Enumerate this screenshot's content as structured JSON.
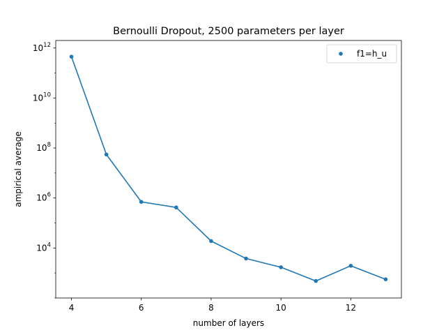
{
  "chart_data": {
    "type": "line",
    "title": "Bernoulli Dropout, 2500 parameters per layer",
    "xlabel": "number of layers",
    "ylabel": "ampirical  average",
    "x_scale": "linear",
    "y_scale": "log",
    "xlim": [
      3.55,
      13.45
    ],
    "ylim": [
      100,
      2000000000000
    ],
    "x_ticks": [
      4,
      6,
      8,
      10,
      12
    ],
    "y_ticks": [
      {
        "value": 10000,
        "base": "10",
        "exp": "4"
      },
      {
        "value": 1000000,
        "base": "10",
        "exp": "6"
      },
      {
        "value": 100000000,
        "base": "10",
        "exp": "8"
      },
      {
        "value": 10000000000,
        "base": "10",
        "exp": "10"
      },
      {
        "value": 1000000000000,
        "base": "10",
        "exp": "12"
      }
    ],
    "grid": false,
    "legend_position": "top-right",
    "series": [
      {
        "name": "f1=h_u",
        "color": "#1f77b4",
        "x": [
          4,
          5,
          6,
          7,
          8,
          9,
          10,
          11,
          12,
          13
        ],
        "y": [
          450000000000,
          55000000,
          700000,
          420000,
          19000,
          3800,
          1700,
          480,
          1950,
          560
        ]
      }
    ]
  }
}
